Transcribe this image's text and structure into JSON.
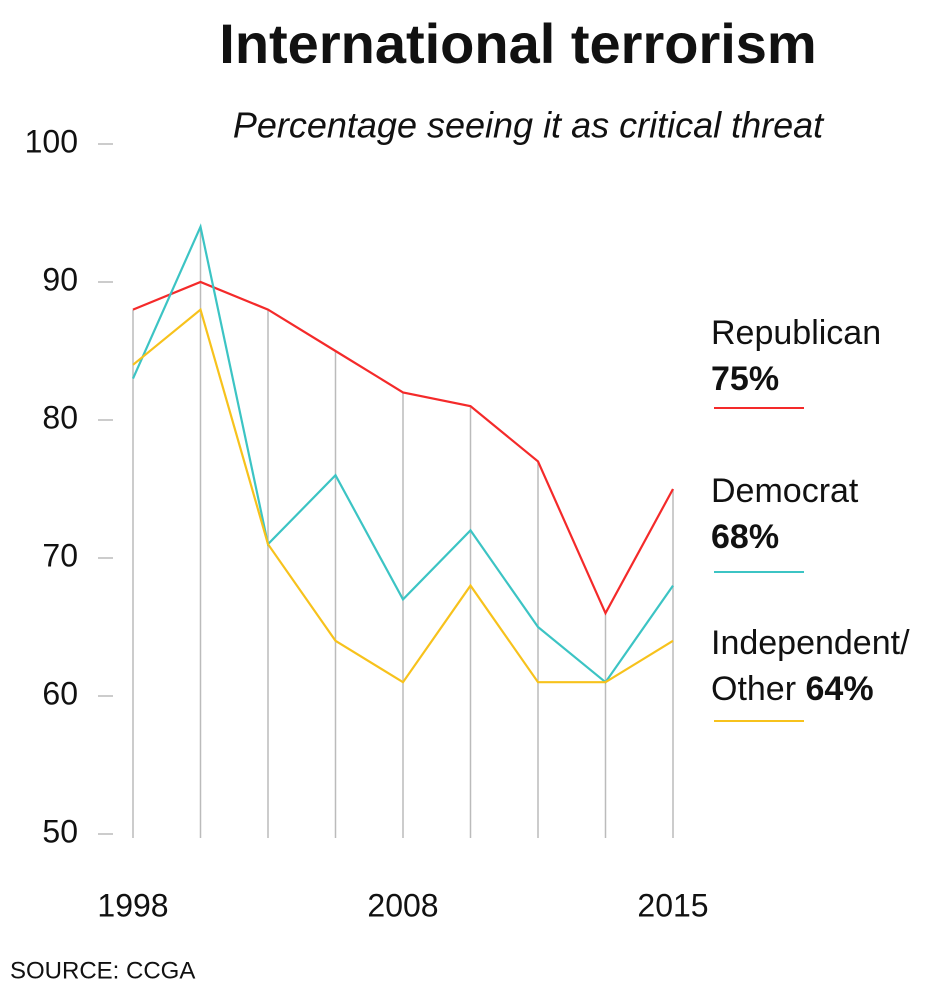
{
  "chart_data": {
    "type": "line",
    "title": "International terrorism",
    "subtitle": "Percentage seeing it as critical threat",
    "source": "SOURCE: CCGA",
    "categories": [
      "1998",
      null,
      null,
      null,
      "2008",
      null,
      null,
      null,
      "2015"
    ],
    "series": [
      {
        "name": "Republican",
        "color": "#f42a2a",
        "values": [
          88,
          90,
          88,
          85,
          82,
          81,
          77,
          66,
          75
        ],
        "end_label": "75%"
      },
      {
        "name": "Democrat",
        "color": "#3cc4c4",
        "values": [
          83,
          94,
          71,
          76,
          67,
          72,
          65,
          61,
          68
        ],
        "end_label": "68%"
      },
      {
        "name": "Independent/ Other",
        "color": "#f7c21c",
        "values": [
          84,
          88,
          71,
          64,
          61,
          68,
          61,
          61,
          64
        ],
        "end_label": "64%"
      }
    ],
    "ylim": [
      50,
      100
    ],
    "yticks": [
      50,
      60,
      70,
      80,
      90,
      100
    ]
  }
}
